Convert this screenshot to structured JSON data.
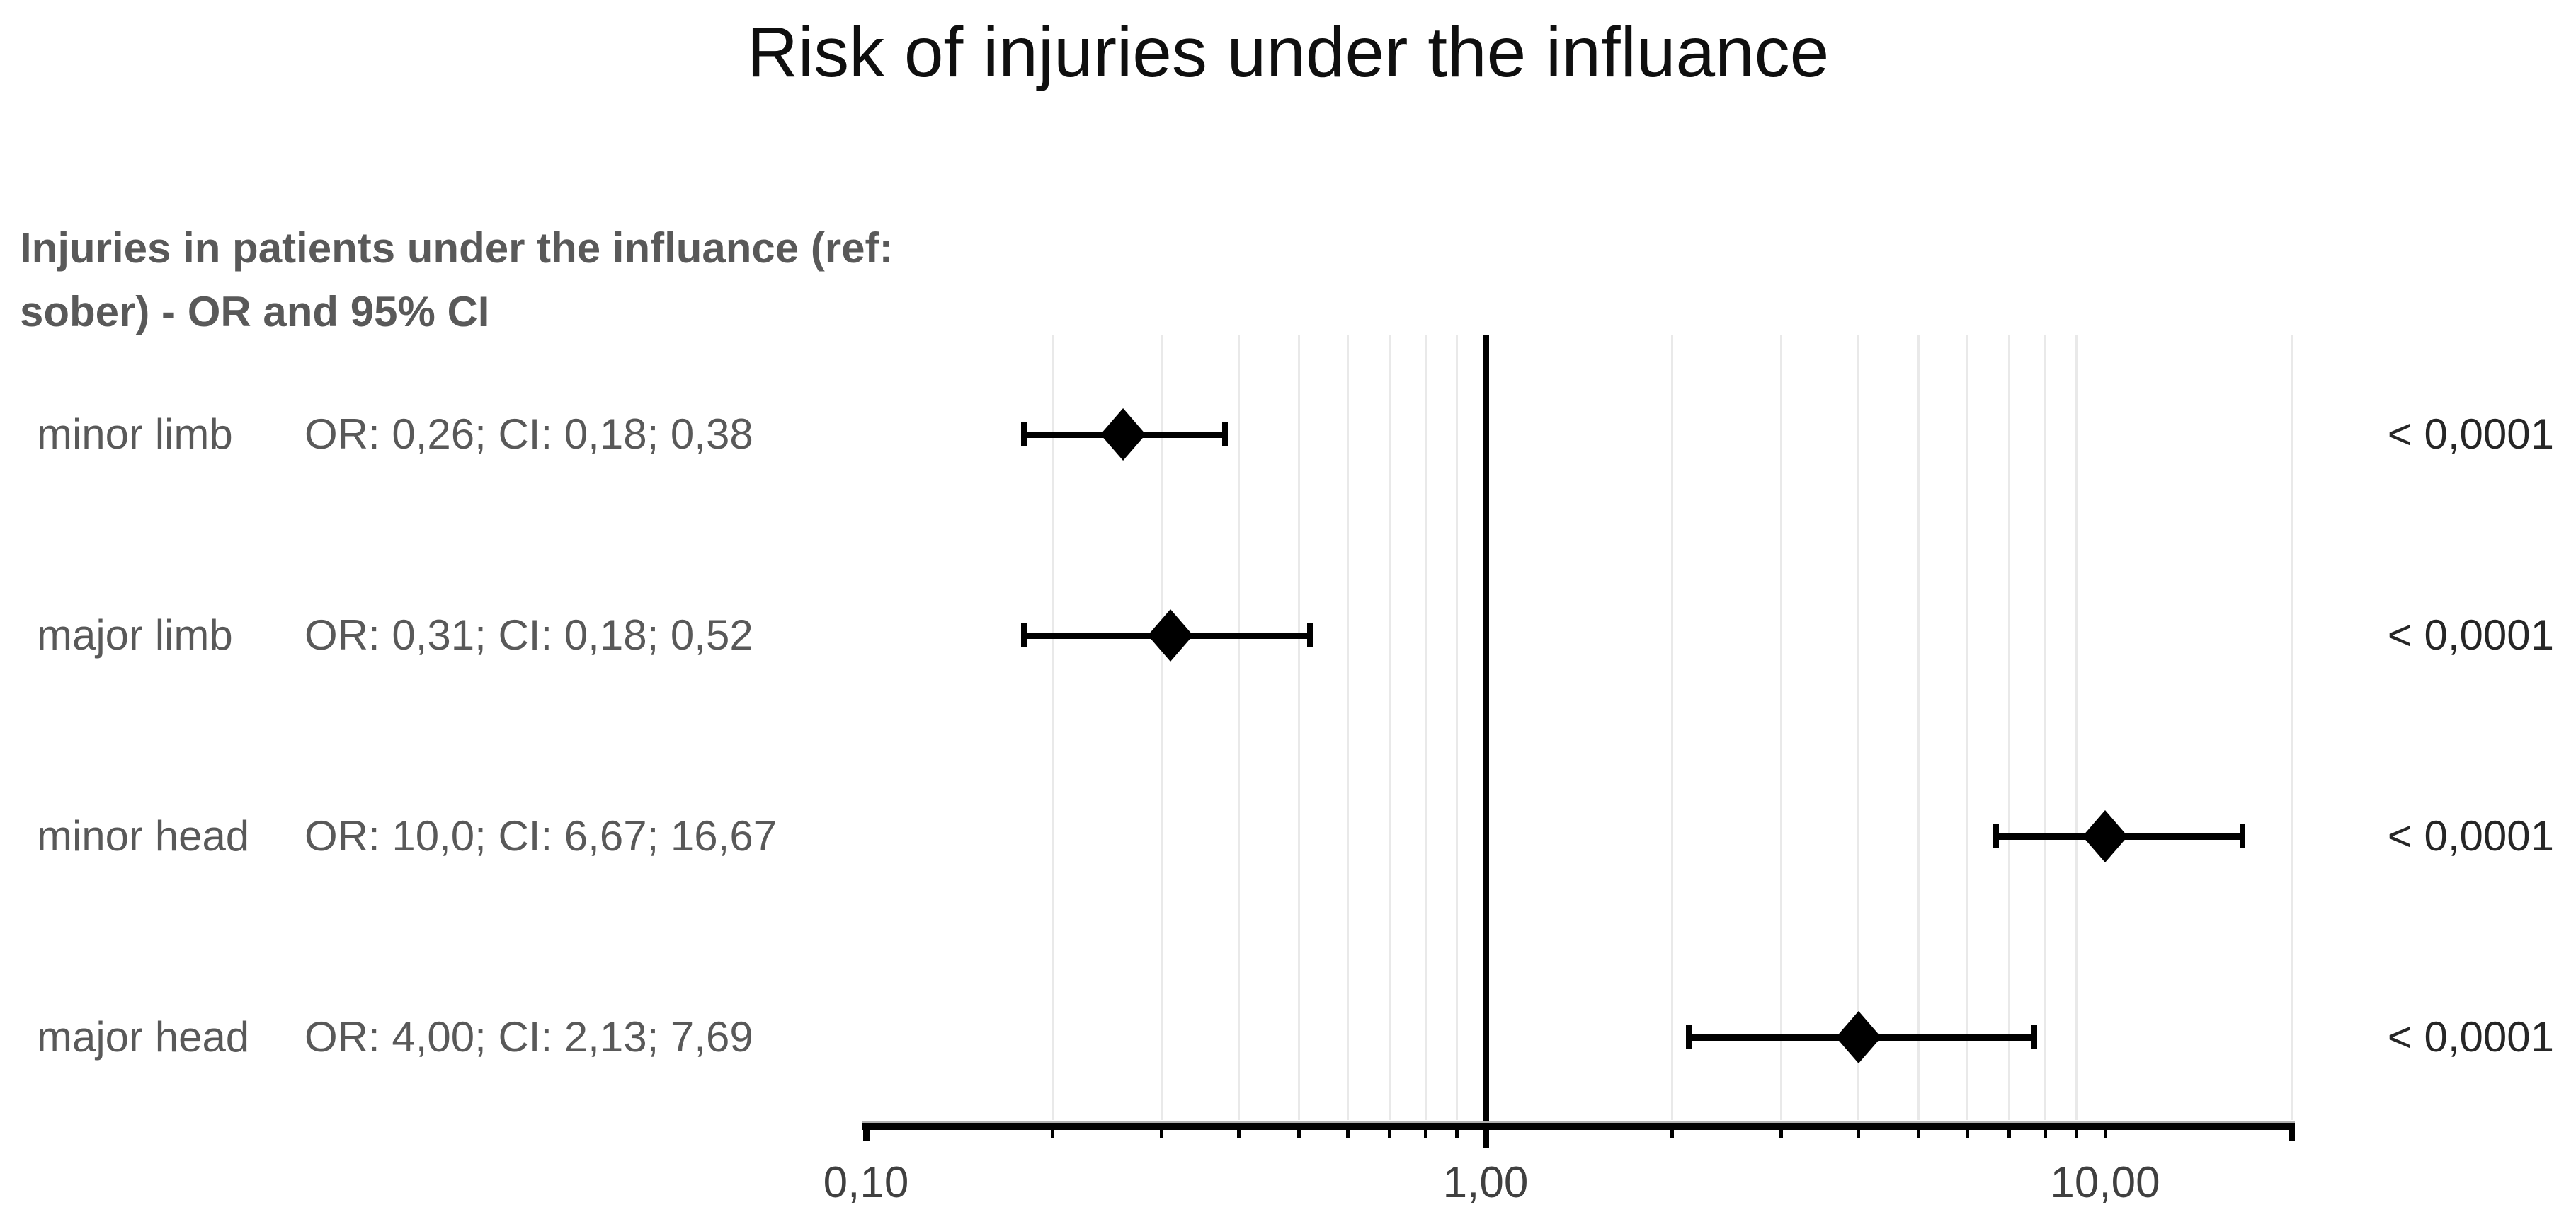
{
  "title": "Risk of injuries under the influance",
  "subtitle_lines": [
    "Injuries in patients under the influance (ref:",
    "sober) - OR and 95% CI"
  ],
  "colors": {
    "title": "#0f0f0f",
    "subtitle": "#595959",
    "row_text": "#595959",
    "p_value_text": "#262626",
    "tick_label": "#404040",
    "gridline": "#e9e9e9",
    "marker": "#000000",
    "reference_line": "#000000"
  },
  "chart_data": {
    "type": "forest",
    "title": "Risk of injuries under the influance",
    "group_title": "Injuries in patients under the influance (ref: sober) - OR and 95% CI",
    "x_scale": "log10",
    "x_range": [
      0.1,
      20
    ],
    "grid": "minor-vertical",
    "reference_line": 1.0,
    "axis_ticks": [
      {
        "value": 0.1,
        "label": "0,10"
      },
      {
        "value": 1.0,
        "label": "1,00"
      },
      {
        "value": 10.0,
        "label": "10,00"
      }
    ],
    "minor_tick_values": [
      0.2,
      0.3,
      0.4,
      0.5,
      0.6,
      0.7,
      0.8,
      0.9,
      2,
      3,
      4,
      5,
      6,
      7,
      8,
      9,
      10
    ],
    "gridline_values": [
      0.2,
      0.3,
      0.4,
      0.5,
      0.6,
      0.7,
      0.8,
      0.9,
      2,
      3,
      4,
      5,
      6,
      7,
      8,
      9,
      20
    ],
    "end_tick_values": [
      0.1,
      20
    ],
    "rows": [
      {
        "label": "minor limb",
        "stat_text": "OR: 0,26; CI: 0,18; 0,38",
        "or": 0.26,
        "ci_low": 0.18,
        "ci_high": 0.38,
        "p_value": "< 0,0001"
      },
      {
        "label": "major limb",
        "stat_text": "OR: 0,31; CI: 0,18; 0,52",
        "or": 0.31,
        "ci_low": 0.18,
        "ci_high": 0.52,
        "p_value": "< 0,0001"
      },
      {
        "label": "minor head",
        "stat_text": "OR: 10,0; CI: 6,67; 16,67",
        "or": 10.0,
        "ci_low": 6.67,
        "ci_high": 16.67,
        "p_value": "< 0,0001"
      },
      {
        "label": "major head",
        "stat_text": "OR: 4,00; CI: 2,13; 7,69",
        "or": 4.0,
        "ci_low": 2.13,
        "ci_high": 7.69,
        "p_value": "< 0,0001"
      }
    ]
  }
}
